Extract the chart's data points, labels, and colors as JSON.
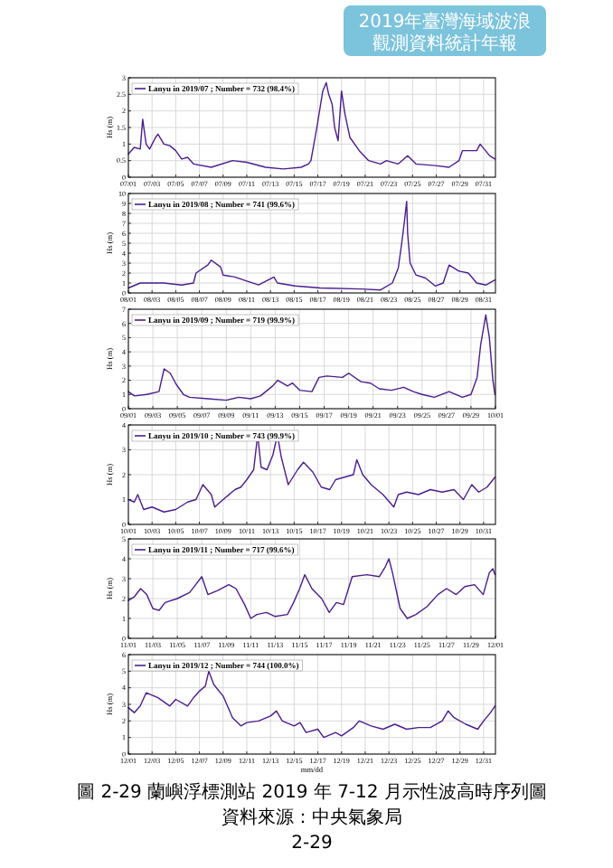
{
  "chart_data": [
    {
      "type": "line",
      "ylabel": "Hs (m)",
      "legend": "top left",
      "grid": true,
      "annotations": [
        "2019年臺灣海域波浪",
        "觀測資料統計年報"
      ],
      "xlim": [
        "2019-07-01",
        "2019-08-01"
      ],
      "ylim": [
        0,
        3
      ],
      "yticks": [
        0,
        0.5,
        1,
        1.5,
        2,
        2.5,
        3
      ],
      "xticks": [
        {
          "value": "2019-07-01",
          "label": "07/01"
        },
        {
          "value": "2019-07-03",
          "label": "07/03"
        },
        {
          "value": "2019-07-05",
          "label": "07/05"
        },
        {
          "value": "2019-07-07",
          "label": "07/07"
        },
        {
          "value": "2019-07-09",
          "label": "07/09"
        },
        {
          "value": "2019-07-11",
          "label": "07/11"
        },
        {
          "value": "2019-07-13",
          "label": "07/13"
        },
        {
          "value": "2019-07-15",
          "label": "07/15"
        },
        {
          "value": "2019-07-17",
          "label": "07/17"
        },
        {
          "value": "2019-07-19",
          "label": "07/19"
        },
        {
          "value": "2019-07-21",
          "label": "07/21"
        },
        {
          "value": "2019-07-23",
          "label": "07/23"
        },
        {
          "value": "2019-07-25",
          "label": "07/25"
        },
        {
          "value": "2019-07-27",
          "label": "07/27"
        },
        {
          "value": "2019-07-29",
          "label": "07/29"
        },
        {
          "value": "2019-07-31",
          "label": "07/31"
        }
      ],
      "x": [
        "2019-07-01T00:00",
        "2019-07-01T12:00",
        "2019-07-02T00:00",
        "2019-07-02T05:00",
        "2019-07-02T12:00",
        "2019-07-02T19:00",
        "2019-07-03T07:00",
        "2019-07-03T12:00",
        "2019-07-04T00:00",
        "2019-07-04T12:00",
        "2019-07-05T00:00",
        "2019-07-05T12:00",
        "2019-07-06T00:00",
        "2019-07-06T12:00",
        "2019-07-08T00:00",
        "2019-07-09T19:00",
        "2019-07-11T00:00",
        "2019-07-12T14:00",
        "2019-07-14T02:00",
        "2019-07-15T14:00",
        "2019-07-16T05:00",
        "2019-07-16T10:00",
        "2019-07-16T22:00",
        "2019-07-17T10:00",
        "2019-07-17T17:00",
        "2019-07-17T22:00",
        "2019-07-18T05:00",
        "2019-07-18T10:00",
        "2019-07-18T17:00",
        "2019-07-19T00:00",
        "2019-07-19T07:00",
        "2019-07-19T17:00",
        "2019-07-20T12:00",
        "2019-07-21T07:00",
        "2019-07-22T07:00",
        "2019-07-22T19:00",
        "2019-07-23T19:00",
        "2019-07-24T14:00",
        "2019-07-25T07:00",
        "2019-07-26T22:00",
        "2019-07-28T02:00",
        "2019-07-28T22:00",
        "2019-07-29T05:00",
        "2019-07-30T10:00",
        "2019-07-30T17:00",
        "2019-07-31T12:00",
        "2019-07-31T23:00"
      ],
      "series": [
        {
          "name": "Lanyu in 2019/07 ; Number = 732  (98.4%)",
          "color": "#4b1d8f",
          "values": [
            0.7,
            0.9,
            0.85,
            1.75,
            1.0,
            0.85,
            1.2,
            1.3,
            1.0,
            0.95,
            0.8,
            0.55,
            0.6,
            0.4,
            0.3,
            0.5,
            0.45,
            0.3,
            0.25,
            0.3,
            0.4,
            0.5,
            1.5,
            2.6,
            2.85,
            2.5,
            2.2,
            1.5,
            1.1,
            2.6,
            1.9,
            1.2,
            0.8,
            0.5,
            0.4,
            0.5,
            0.4,
            0.65,
            0.4,
            0.35,
            0.3,
            0.5,
            0.8,
            0.8,
            1.0,
            0.65,
            0.55
          ]
        }
      ]
    },
    {
      "type": "line",
      "ylabel": "Hs (m)",
      "legend": "top left",
      "grid": true,
      "xlim": [
        "2019-08-01",
        "2019-09-01"
      ],
      "ylim": [
        0,
        10
      ],
      "yticks": [
        0,
        1,
        2,
        3,
        4,
        5,
        6,
        7,
        8,
        9,
        10
      ],
      "xticks": [
        {
          "value": "2019-08-01",
          "label": "08/01"
        },
        {
          "value": "2019-08-03",
          "label": "08/03"
        },
        {
          "value": "2019-08-05",
          "label": "08/05"
        },
        {
          "value": "2019-08-07",
          "label": "08/07"
        },
        {
          "value": "2019-08-09",
          "label": "08/09"
        },
        {
          "value": "2019-08-11",
          "label": "08/11"
        },
        {
          "value": "2019-08-13",
          "label": "08/13"
        },
        {
          "value": "2019-08-15",
          "label": "08/15"
        },
        {
          "value": "2019-08-17",
          "label": "08/17"
        },
        {
          "value": "2019-08-19",
          "label": "08/19"
        },
        {
          "value": "2019-08-21",
          "label": "08/21"
        },
        {
          "value": "2019-08-23",
          "label": "08/23"
        },
        {
          "value": "2019-08-25",
          "label": "08/25"
        },
        {
          "value": "2019-08-27",
          "label": "08/27"
        },
        {
          "value": "2019-08-29",
          "label": "08/29"
        },
        {
          "value": "2019-08-31",
          "label": "08/31"
        }
      ],
      "x": [
        "2019-08-01T00:00",
        "2019-08-02T00:00",
        "2019-08-04T00:00",
        "2019-08-05T12:00",
        "2019-08-06T12:00",
        "2019-08-06T17:00",
        "2019-08-07T17:00",
        "2019-08-08T00:00",
        "2019-08-08T19:00",
        "2019-08-09T00:00",
        "2019-08-10T00:00",
        "2019-08-11T00:00",
        "2019-08-12T00:00",
        "2019-08-13T07:00",
        "2019-08-13T14:00",
        "2019-08-15T02:00",
        "2019-08-17T05:00",
        "2019-08-20T17:00",
        "2019-08-22T07:00",
        "2019-08-23T07:00",
        "2019-08-23T19:00",
        "2019-08-24T02:00",
        "2019-08-24T07:00",
        "2019-08-24T12:00",
        "2019-08-24T14:00",
        "2019-08-24T19:00",
        "2019-08-25T07:00",
        "2019-08-26T02:00",
        "2019-08-26T22:00",
        "2019-08-27T14:00",
        "2019-08-28T02:00",
        "2019-08-28T22:00",
        "2019-08-29T17:00",
        "2019-08-30T10:00",
        "2019-08-31T05:00",
        "2019-08-31T23:00"
      ],
      "series": [
        {
          "name": "Lanyu in 2019/08 ; Number = 741  (99.6%)",
          "color": "#4b1d8f",
          "values": [
            0.5,
            1.0,
            1.0,
            0.8,
            1.0,
            2.0,
            2.8,
            3.3,
            2.6,
            1.8,
            1.6,
            1.2,
            0.8,
            1.6,
            1.0,
            0.7,
            0.5,
            0.4,
            0.3,
            1.0,
            2.5,
            5,
            7,
            9.2,
            6,
            3,
            1.8,
            1.5,
            0.7,
            1.0,
            2.8,
            2.2,
            2.0,
            1.0,
            0.8,
            1.3
          ]
        }
      ]
    },
    {
      "type": "line",
      "ylabel": "Hs (m)",
      "legend": "top left",
      "grid": true,
      "xlim": [
        "2019-09-01",
        "2019-10-01"
      ],
      "ylim": [
        0,
        7
      ],
      "yticks": [
        0,
        1,
        2,
        3,
        4,
        5,
        6,
        7
      ],
      "xticks": [
        {
          "value": "2019-09-01",
          "label": "09/01"
        },
        {
          "value": "2019-09-03",
          "label": "09/03"
        },
        {
          "value": "2019-09-05",
          "label": "09/05"
        },
        {
          "value": "2019-09-07",
          "label": "09/07"
        },
        {
          "value": "2019-09-09",
          "label": "09/09"
        },
        {
          "value": "2019-09-11",
          "label": "09/11"
        },
        {
          "value": "2019-09-13",
          "label": "09/13"
        },
        {
          "value": "2019-09-15",
          "label": "09/15"
        },
        {
          "value": "2019-09-17",
          "label": "09/17"
        },
        {
          "value": "2019-09-19",
          "label": "09/19"
        },
        {
          "value": "2019-09-21",
          "label": "09/21"
        },
        {
          "value": "2019-09-23",
          "label": "09/23"
        },
        {
          "value": "2019-09-25",
          "label": "09/25"
        },
        {
          "value": "2019-09-27",
          "label": "09/27"
        },
        {
          "value": "2019-09-29",
          "label": "09/29"
        },
        {
          "value": "2019-10-01",
          "label": "10/01"
        }
      ],
      "x": [
        "2019-09-01T00:00",
        "2019-09-01T12:00",
        "2019-09-02T12:00",
        "2019-09-03T12:00",
        "2019-09-03T22:00",
        "2019-09-04T10:00",
        "2019-09-04T22:00",
        "2019-09-05T12:00",
        "2019-09-06T00:00",
        "2019-09-07T12:00",
        "2019-09-09T00:00",
        "2019-09-10T00:00",
        "2019-09-11T00:00",
        "2019-09-11T19:00",
        "2019-09-12T19:00",
        "2019-09-13T05:00",
        "2019-09-14T00:00",
        "2019-09-14T10:00",
        "2019-09-15T00:00",
        "2019-09-16T00:00",
        "2019-09-16T14:00",
        "2019-09-17T05:00",
        "2019-09-18T12:00",
        "2019-09-19T00:00",
        "2019-09-20T00:00",
        "2019-09-20T19:00",
        "2019-09-21T12:00",
        "2019-09-22T12:00",
        "2019-09-23T12:00",
        "2019-09-24T07:00",
        "2019-09-25T00:00",
        "2019-09-26T00:00",
        "2019-09-27T05:00",
        "2019-09-28T07:00",
        "2019-09-29T00:00",
        "2019-09-29T12:00",
        "2019-09-29T19:00",
        "2019-09-30T05:00",
        "2019-09-30T12:00",
        "2019-09-30T19:00",
        "2019-09-30T23:00"
      ],
      "series": [
        {
          "name": "Lanyu in 2019/09 ; Number = 719  (99.9%)",
          "color": "#4b1d8f",
          "values": [
            1.2,
            0.9,
            1.0,
            1.2,
            2.8,
            2.5,
            1.7,
            1.0,
            0.8,
            0.7,
            0.6,
            0.8,
            0.7,
            0.9,
            1.6,
            2.0,
            1.6,
            1.8,
            1.3,
            1.2,
            2.2,
            2.3,
            2.2,
            2.5,
            1.9,
            1.8,
            1.4,
            1.3,
            1.5,
            1.2,
            1.0,
            0.8,
            1.2,
            0.8,
            1.0,
            2.2,
            4.5,
            6.6,
            5.0,
            2.0,
            1.0
          ]
        }
      ]
    },
    {
      "type": "line",
      "ylabel": "Hs (m)",
      "legend": "top left",
      "grid": true,
      "xlim": [
        "2019-10-01",
        "2019-11-01"
      ],
      "ylim": [
        0,
        4
      ],
      "yticks": [
        0,
        1,
        2,
        3,
        4
      ],
      "xticks": [
        {
          "value": "2019-10-01",
          "label": "10/01"
        },
        {
          "value": "2019-10-03",
          "label": "10/03"
        },
        {
          "value": "2019-10-05",
          "label": "10/05"
        },
        {
          "value": "2019-10-07",
          "label": "10/07"
        },
        {
          "value": "2019-10-09",
          "label": "10/09"
        },
        {
          "value": "2019-10-11",
          "label": "10/11"
        },
        {
          "value": "2019-10-13",
          "label": "10/13"
        },
        {
          "value": "2019-10-15",
          "label": "10/15"
        },
        {
          "value": "2019-10-17",
          "label": "10/17"
        },
        {
          "value": "2019-10-19",
          "label": "10/19"
        },
        {
          "value": "2019-10-21",
          "label": "10/21"
        },
        {
          "value": "2019-10-23",
          "label": "10/23"
        },
        {
          "value": "2019-10-25",
          "label": "10/25"
        },
        {
          "value": "2019-10-27",
          "label": "10/27"
        },
        {
          "value": "2019-10-29",
          "label": "10/29"
        },
        {
          "value": "2019-10-31",
          "label": "10/31"
        }
      ],
      "x": [
        "2019-10-01T00:00",
        "2019-10-01T12:00",
        "2019-10-01T19:00",
        "2019-10-02T07:00",
        "2019-10-03T00:00",
        "2019-10-04T00:00",
        "2019-10-05T00:00",
        "2019-10-06T00:00",
        "2019-10-06T17:00",
        "2019-10-07T07:00",
        "2019-10-08T00:00",
        "2019-10-08T07:00",
        "2019-10-09T00:00",
        "2019-10-10T00:00",
        "2019-10-10T12:00",
        "2019-10-11T00:00",
        "2019-10-11T14:00",
        "2019-10-11T22:00",
        "2019-10-12T05:00",
        "2019-10-12T17:00",
        "2019-10-13T05:00",
        "2019-10-13T14:00",
        "2019-10-13T22:00",
        "2019-10-14T12:00",
        "2019-10-15T07:00",
        "2019-10-15T19:00",
        "2019-10-16T14:00",
        "2019-10-17T07:00",
        "2019-10-18T00:00",
        "2019-10-18T12:00",
        "2019-10-20T00:00",
        "2019-10-20T07:00",
        "2019-10-20T19:00",
        "2019-10-21T12:00",
        "2019-10-22T12:00",
        "2019-10-23T10:00",
        "2019-10-23T19:00",
        "2019-10-24T12:00",
        "2019-10-25T12:00",
        "2019-10-26T12:00",
        "2019-10-27T12:00",
        "2019-10-28T12:00",
        "2019-10-29T07:00",
        "2019-10-30T00:00",
        "2019-10-30T14:00",
        "2019-10-31T07:00",
        "2019-10-31T23:00"
      ],
      "series": [
        {
          "name": "Lanyu in 2019/10 ; Number = 743  (99.9%)",
          "color": "#4b1d8f",
          "values": [
            1.0,
            0.9,
            1.2,
            0.6,
            0.7,
            0.5,
            0.6,
            0.9,
            1.0,
            1.6,
            1.2,
            0.7,
            1.0,
            1.4,
            1.5,
            1.8,
            2.2,
            3.6,
            2.3,
            2.2,
            2.8,
            3.6,
            2.7,
            1.6,
            2.2,
            2.5,
            2.1,
            1.5,
            1.4,
            1.8,
            2.0,
            2.6,
            2.0,
            1.6,
            1.2,
            0.7,
            1.2,
            1.3,
            1.2,
            1.4,
            1.3,
            1.4,
            1.0,
            1.6,
            1.3,
            1.5,
            1.9
          ]
        }
      ]
    },
    {
      "type": "line",
      "ylabel": "Hs (m)",
      "legend": "top left",
      "grid": true,
      "xlim": [
        "2019-11-01",
        "2019-12-01"
      ],
      "ylim": [
        0,
        5
      ],
      "yticks": [
        0,
        1,
        2,
        3,
        4,
        5
      ],
      "xticks": [
        {
          "value": "2019-11-01",
          "label": "11/01"
        },
        {
          "value": "2019-11-03",
          "label": "11/03"
        },
        {
          "value": "2019-11-05",
          "label": "11/05"
        },
        {
          "value": "2019-11-07",
          "label": "11/07"
        },
        {
          "value": "2019-11-09",
          "label": "11/09"
        },
        {
          "value": "2019-11-11",
          "label": "11/11"
        },
        {
          "value": "2019-11-13",
          "label": "11/13"
        },
        {
          "value": "2019-11-15",
          "label": "11/15"
        },
        {
          "value": "2019-11-17",
          "label": "11/17"
        },
        {
          "value": "2019-11-19",
          "label": "11/19"
        },
        {
          "value": "2019-11-21",
          "label": "11/21"
        },
        {
          "value": "2019-11-23",
          "label": "11/23"
        },
        {
          "value": "2019-11-25",
          "label": "11/25"
        },
        {
          "value": "2019-11-27",
          "label": "11/27"
        },
        {
          "value": "2019-11-29",
          "label": "11/29"
        },
        {
          "value": "2019-12-01",
          "label": "12/01"
        }
      ],
      "x": [
        "2019-11-01T00:00",
        "2019-11-01T12:00",
        "2019-11-02T00:00",
        "2019-11-02T12:00",
        "2019-11-03T00:00",
        "2019-11-03T12:00",
        "2019-11-04T00:00",
        "2019-11-05T00:00",
        "2019-11-06T00:00",
        "2019-11-06T12:00",
        "2019-11-07T00:00",
        "2019-11-07T12:00",
        "2019-11-08T07:00",
        "2019-11-09T05:00",
        "2019-11-09T19:00",
        "2019-11-10T12:00",
        "2019-11-11T00:00",
        "2019-11-11T12:00",
        "2019-11-12T07:00",
        "2019-11-13T00:00",
        "2019-11-14T00:00",
        "2019-11-14T12:00",
        "2019-11-15T00:00",
        "2019-11-15T10:00",
        "2019-11-16T00:00",
        "2019-11-16T19:00",
        "2019-11-17T10:00",
        "2019-11-18T00:00",
        "2019-11-18T14:00",
        "2019-11-19T07:00",
        "2019-11-20T12:00",
        "2019-11-21T12:00",
        "2019-11-22T00:00",
        "2019-11-22T07:00",
        "2019-11-22T14:00",
        "2019-11-23T05:00",
        "2019-11-23T19:00",
        "2019-11-24T12:00",
        "2019-11-25T10:00",
        "2019-11-26T07:00",
        "2019-11-27T00:00",
        "2019-11-27T19:00",
        "2019-11-28T12:00",
        "2019-11-29T07:00",
        "2019-11-30T00:00",
        "2019-11-30T12:00",
        "2019-11-30T19:00",
        "2019-11-30T23:00"
      ],
      "series": [
        {
          "name": "Lanyu in 2019/11 ; Number = 717  (99.6%)",
          "color": "#4b1d8f",
          "values": [
            1.9,
            2.1,
            2.5,
            2.2,
            1.5,
            1.4,
            1.8,
            2.0,
            2.3,
            2.7,
            3.1,
            2.2,
            2.4,
            2.7,
            2.5,
            1.7,
            1.0,
            1.2,
            1.3,
            1.1,
            1.2,
            1.8,
            2.5,
            3.2,
            2.5,
            2.0,
            1.3,
            1.8,
            1.7,
            3.1,
            3.2,
            3.1,
            3.6,
            4.0,
            3.3,
            1.5,
            1.0,
            1.2,
            1.6,
            2.2,
            2.5,
            2.2,
            2.6,
            2.7,
            2.2,
            3.3,
            3.5,
            3.2
          ]
        }
      ]
    },
    {
      "type": "line",
      "ylabel": "Hs (m)",
      "xlabel": "mm/dd",
      "legend": "top left",
      "grid": true,
      "annotations": [
        "圖 2-29 蘭嶼浮標測站 2019 年 7-12 月示性波高時序列圖",
        "資料來源：中央氣象局",
        "2-29"
      ],
      "xlim": [
        "2019-12-01",
        "2020-01-01"
      ],
      "ylim": [
        0,
        6
      ],
      "yticks": [
        0,
        1,
        2,
        3,
        4,
        5,
        6
      ],
      "xticks": [
        {
          "value": "2019-12-01",
          "label": "12/01"
        },
        {
          "value": "2019-12-03",
          "label": "12/03"
        },
        {
          "value": "2019-12-05",
          "label": "12/05"
        },
        {
          "value": "2019-12-07",
          "label": "12/07"
        },
        {
          "value": "2019-12-09",
          "label": "12/09"
        },
        {
          "value": "2019-12-11",
          "label": "12/11"
        },
        {
          "value": "2019-12-13",
          "label": "12/13"
        },
        {
          "value": "2019-12-15",
          "label": "12/15"
        },
        {
          "value": "2019-12-17",
          "label": "12/17"
        },
        {
          "value": "2019-12-19",
          "label": "12/19"
        },
        {
          "value": "2019-12-21",
          "label": "12/21"
        },
        {
          "value": "2019-12-23",
          "label": "12/23"
        },
        {
          "value": "2019-12-25",
          "label": "12/25"
        },
        {
          "value": "2019-12-27",
          "label": "12/27"
        },
        {
          "value": "2019-12-29",
          "label": "12/29"
        },
        {
          "value": "2019-12-31",
          "label": "12/31"
        }
      ],
      "x": [
        "2019-12-01T00:00",
        "2019-12-01T12:00",
        "2019-12-02T00:00",
        "2019-12-02T12:00",
        "2019-12-03T12:00",
        "2019-12-04T12:00",
        "2019-12-05T00:00",
        "2019-12-06T00:00",
        "2019-12-06T12:00",
        "2019-12-07T00:00",
        "2019-12-07T12:00",
        "2019-12-07T19:00",
        "2019-12-08T05:00",
        "2019-12-09T00:00",
        "2019-12-09T19:00",
        "2019-12-10T12:00",
        "2019-12-11T00:00",
        "2019-12-12T00:00",
        "2019-12-13T00:00",
        "2019-12-13T12:00",
        "2019-12-14T00:00",
        "2019-12-15T00:00",
        "2019-12-15T12:00",
        "2019-12-16T00:00",
        "2019-12-17T00:00",
        "2019-12-17T12:00",
        "2019-12-18T12:00",
        "2019-12-19T00:00",
        "2019-12-20T00:00",
        "2019-12-20T12:00",
        "2019-12-21T12:00",
        "2019-12-22T12:00",
        "2019-12-23T12:00",
        "2019-12-24T12:00",
        "2019-12-25T12:00",
        "2019-12-26T12:00",
        "2019-12-27T12:00",
        "2019-12-28T00:00",
        "2019-12-28T12:00",
        "2019-12-29T12:00",
        "2019-12-30T12:00",
        "2019-12-31T00:00",
        "2019-12-31T14:00",
        "2019-12-31T23:00"
      ],
      "series": [
        {
          "name": "Lanyu in 2019/12 ; Number = 744  (100.0%)",
          "color": "#4b1d8f",
          "values": [
            2.8,
            2.5,
            2.9,
            3.7,
            3.4,
            2.9,
            3.3,
            2.9,
            3.4,
            3.8,
            4.1,
            5.0,
            4.2,
            3.5,
            2.2,
            1.7,
            1.9,
            2.0,
            2.3,
            2.6,
            2.0,
            1.7,
            1.9,
            1.3,
            1.5,
            1.0,
            1.3,
            1.1,
            1.6,
            2.0,
            1.7,
            1.5,
            1.8,
            1.5,
            1.6,
            1.6,
            2.0,
            2.6,
            2.2,
            1.8,
            1.5,
            2.0,
            2.5,
            2.9
          ]
        }
      ]
    }
  ]
}
